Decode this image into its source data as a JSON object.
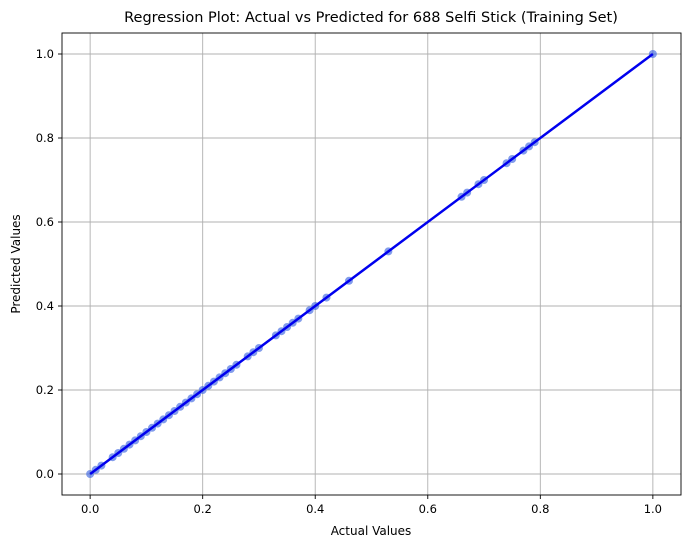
{
  "chart_data": {
    "type": "scatter",
    "title": "Regression Plot: Actual vs Predicted for 688 Selfi Stick (Training Set)",
    "xlabel": "Actual Values",
    "ylabel": "Predicted Values",
    "xlim": [
      -0.05,
      1.05
    ],
    "ylim": [
      -0.05,
      1.05
    ],
    "xticks": [
      0.0,
      0.2,
      0.4,
      0.6,
      0.8,
      1.0
    ],
    "yticks": [
      0.0,
      0.2,
      0.4,
      0.6,
      0.8,
      1.0
    ],
    "xtick_labels": [
      "0.0",
      "0.2",
      "0.4",
      "0.6",
      "0.8",
      "1.0"
    ],
    "ytick_labels": [
      "0.0",
      "0.2",
      "0.4",
      "0.6",
      "0.8",
      "1.0"
    ],
    "grid": true,
    "series": [
      {
        "kind": "points",
        "color": "#4169e1",
        "points": [
          [
            0.0,
            0.0
          ],
          [
            0.01,
            0.01
          ],
          [
            0.02,
            0.02
          ],
          [
            0.04,
            0.04
          ],
          [
            0.05,
            0.05
          ],
          [
            0.06,
            0.06
          ],
          [
            0.07,
            0.07
          ],
          [
            0.08,
            0.08
          ],
          [
            0.09,
            0.09
          ],
          [
            0.1,
            0.1
          ],
          [
            0.11,
            0.11
          ],
          [
            0.12,
            0.12
          ],
          [
            0.13,
            0.13
          ],
          [
            0.14,
            0.14
          ],
          [
            0.15,
            0.15
          ],
          [
            0.16,
            0.16
          ],
          [
            0.17,
            0.17
          ],
          [
            0.18,
            0.18
          ],
          [
            0.19,
            0.19
          ],
          [
            0.2,
            0.2
          ],
          [
            0.21,
            0.21
          ],
          [
            0.22,
            0.22
          ],
          [
            0.23,
            0.23
          ],
          [
            0.24,
            0.24
          ],
          [
            0.25,
            0.25
          ],
          [
            0.26,
            0.26
          ],
          [
            0.28,
            0.28
          ],
          [
            0.29,
            0.29
          ],
          [
            0.3,
            0.3
          ],
          [
            0.33,
            0.33
          ],
          [
            0.34,
            0.34
          ],
          [
            0.35,
            0.35
          ],
          [
            0.36,
            0.36
          ],
          [
            0.37,
            0.37
          ],
          [
            0.39,
            0.39
          ],
          [
            0.4,
            0.4
          ],
          [
            0.42,
            0.42
          ],
          [
            0.46,
            0.46
          ],
          [
            0.53,
            0.53
          ],
          [
            0.66,
            0.66
          ],
          [
            0.67,
            0.67
          ],
          [
            0.69,
            0.69
          ],
          [
            0.7,
            0.7
          ],
          [
            0.74,
            0.74
          ],
          [
            0.75,
            0.75
          ],
          [
            0.77,
            0.77
          ],
          [
            0.78,
            0.78
          ],
          [
            0.79,
            0.79
          ],
          [
            1.0,
            1.0
          ]
        ]
      },
      {
        "kind": "line",
        "color": "#0000ee",
        "x": [
          0.0,
          1.0
        ],
        "y": [
          0.0,
          1.0
        ]
      }
    ]
  }
}
